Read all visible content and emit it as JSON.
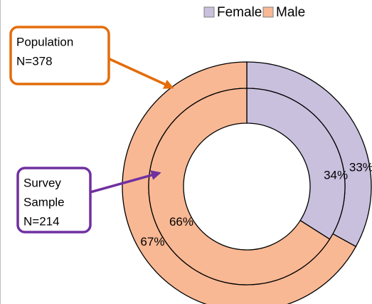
{
  "chart_data": {
    "type": "donut",
    "categories": [
      "Female",
      "Male"
    ],
    "colors": [
      "#c9c0de",
      "#f8b894"
    ],
    "legend": "top-right",
    "series": [
      {
        "values": [
          33,
          67
        ],
        "value_labels": [
          "33%",
          "67%"
        ]
      },
      {
        "values": [
          34,
          66
        ],
        "value_labels": [
          "34%",
          "66%"
        ]
      }
    ],
    "annotations": [
      {
        "lines": [
          "Population",
          "N=378"
        ],
        "color": "#e46c0a"
      },
      {
        "lines": [
          "Survey",
          "Sample",
          "N=214"
        ],
        "color": "#7030a0"
      }
    ]
  }
}
